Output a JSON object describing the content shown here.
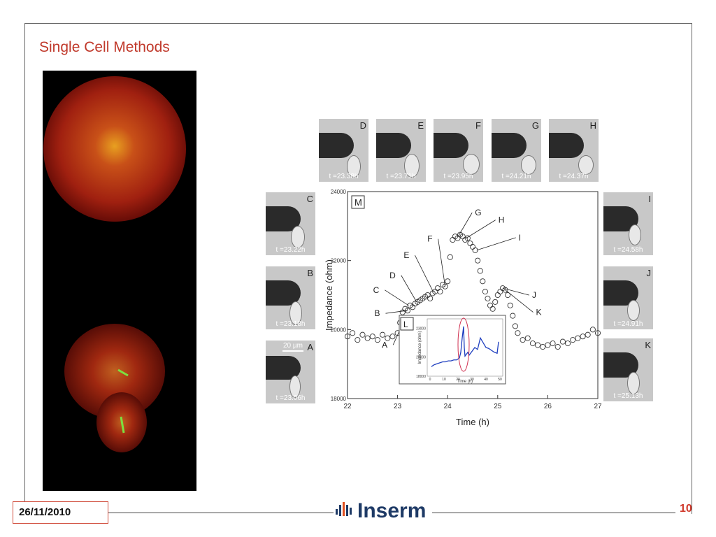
{
  "slide": {
    "title": "Single Cell Methods",
    "date": "26/11/2010",
    "page_number": "10",
    "logo_text": "Inserm",
    "accent_color": "#c0392b"
  },
  "panel_labels": {
    "A": "A",
    "B": "B",
    "C": "C",
    "D": "D",
    "E": "E",
    "F": "F",
    "G": "G",
    "H": "H",
    "I": "I",
    "J": "J",
    "K": "K"
  },
  "photos": {
    "D": {
      "label": "D",
      "time": "t =23.38h"
    },
    "E": {
      "label": "E",
      "time": "t =23.71h"
    },
    "F": {
      "label": "F",
      "time": "t =23.95h"
    },
    "G": {
      "label": "G",
      "time": "t =24.21h"
    },
    "H": {
      "label": "H",
      "time": "t =24.37h"
    },
    "C": {
      "label": "C",
      "time": "t =23.22h"
    },
    "B": {
      "label": "B",
      "time": "t =23.18h"
    },
    "A": {
      "label": "A",
      "time": "t =23.06h",
      "scale": "20 µm"
    },
    "I": {
      "label": "I",
      "time": "t =24.58h"
    },
    "J": {
      "label": "J",
      "time": "t =24.91h"
    },
    "K": {
      "label": "K",
      "time": "t =25.13h"
    }
  },
  "chart_data": [
    {
      "type": "scatter",
      "panel_label": "M",
      "xlabel": "Time (h)",
      "ylabel": "Impedance (ohm)",
      "xlim": [
        22,
        27
      ],
      "ylim": [
        18000,
        24000
      ],
      "xticks": [
        22,
        23,
        24,
        25,
        26,
        27
      ],
      "yticks": [
        18000,
        20000,
        22000,
        24000
      ],
      "grid": false,
      "x": [
        22.0,
        22.1,
        22.2,
        22.3,
        22.4,
        22.5,
        22.6,
        22.7,
        22.8,
        22.9,
        23.0,
        23.05,
        23.1,
        23.15,
        23.2,
        23.25,
        23.3,
        23.35,
        23.4,
        23.45,
        23.5,
        23.55,
        23.6,
        23.65,
        23.7,
        23.75,
        23.8,
        23.85,
        23.9,
        23.95,
        24.0,
        24.05,
        24.1,
        24.15,
        24.2,
        24.25,
        24.3,
        24.35,
        24.4,
        24.45,
        24.5,
        24.55,
        24.6,
        24.65,
        24.7,
        24.75,
        24.8,
        24.85,
        24.9,
        24.95,
        25.0,
        25.05,
        25.1,
        25.15,
        25.2,
        25.25,
        25.3,
        25.35,
        25.4,
        25.5,
        25.6,
        25.7,
        25.8,
        25.9,
        26.0,
        26.1,
        26.2,
        26.3,
        26.4,
        26.5,
        26.6,
        26.7,
        26.8,
        26.9,
        27.0
      ],
      "y": [
        19800,
        19900,
        19700,
        19850,
        19750,
        19800,
        19700,
        19850,
        19750,
        19800,
        19900,
        20200,
        20500,
        20600,
        20550,
        20700,
        20650,
        20750,
        20800,
        20850,
        20900,
        20950,
        21000,
        20900,
        21050,
        21100,
        21200,
        21100,
        21300,
        21250,
        21400,
        22100,
        22600,
        22700,
        22650,
        22750,
        22700,
        22600,
        22650,
        22500,
        22400,
        22300,
        22000,
        21700,
        21400,
        21100,
        20900,
        20700,
        20600,
        20800,
        21000,
        21100,
        21200,
        21150,
        21000,
        20700,
        20400,
        20100,
        19900,
        19700,
        19750,
        19600,
        19550,
        19500,
        19550,
        19600,
        19500,
        19650,
        19600,
        19700,
        19750,
        19800,
        19850,
        20000,
        19900
      ],
      "annotations": [
        {
          "text": "A",
          "x": 23.05,
          "y": 20000
        },
        {
          "text": "B",
          "x": 23.18,
          "y": 20550
        },
        {
          "text": "C",
          "x": 23.22,
          "y": 20700
        },
        {
          "text": "D",
          "x": 23.38,
          "y": 20800
        },
        {
          "text": "E",
          "x": 23.71,
          "y": 21100
        },
        {
          "text": "F",
          "x": 23.95,
          "y": 21250
        },
        {
          "text": "G",
          "x": 24.21,
          "y": 22700
        },
        {
          "text": "H",
          "x": 24.37,
          "y": 22650
        },
        {
          "text": "I",
          "x": 24.58,
          "y": 22300
        },
        {
          "text": "J",
          "x": 25.1,
          "y": 21200
        },
        {
          "text": "K",
          "x": 25.15,
          "y": 21150
        }
      ],
      "marker_color": "#333333"
    },
    {
      "type": "line",
      "panel_label": "L",
      "xlabel": "Time (h)",
      "ylabel": "Impedance (ohm)",
      "xlim": [
        -2,
        52
      ],
      "ylim": [
        18000,
        24000
      ],
      "xticks": [
        0,
        10,
        20,
        30,
        40,
        50
      ],
      "yticks": [
        18000,
        20000,
        23000
      ],
      "x": [
        1,
        3,
        5,
        7,
        9,
        11,
        13,
        15,
        17,
        19,
        21,
        22,
        23,
        24,
        24.5,
        25,
        26,
        27,
        28,
        30,
        32,
        34,
        36,
        38,
        40,
        42,
        44,
        46,
        48,
        49
      ],
      "y": [
        19000,
        19200,
        19300,
        19400,
        19500,
        19500,
        19600,
        19600,
        19700,
        19700,
        19900,
        20500,
        22000,
        23200,
        21000,
        20100,
        20300,
        20500,
        20200,
        20600,
        21000,
        20800,
        22000,
        21500,
        21000,
        20900,
        20700,
        20500,
        20400,
        21600
      ],
      "highlight_ellipse_x_center": 24,
      "line_color": "#1f3fbf",
      "highlight_color": "#d03050"
    }
  ]
}
